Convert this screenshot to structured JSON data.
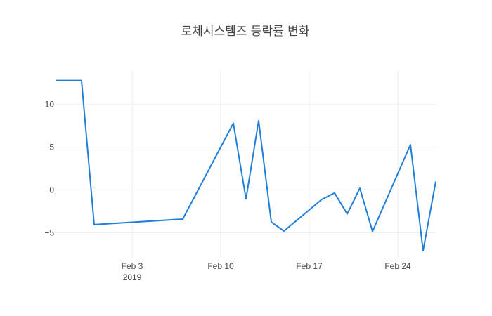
{
  "chart_data": {
    "type": "line",
    "title": "로체시스템즈 등락률 변화",
    "xlabel": "",
    "ylabel": "",
    "x": [
      "2019-01-28",
      "2019-01-30",
      "2019-01-31",
      "2019-02-07",
      "2019-02-11",
      "2019-02-12",
      "2019-02-13",
      "2019-02-14",
      "2019-02-15",
      "2019-02-18",
      "2019-02-19",
      "2019-02-20",
      "2019-02-21",
      "2019-02-22",
      "2019-02-25",
      "2019-02-26",
      "2019-02-27"
    ],
    "values": [
      12.8,
      12.8,
      -4.05,
      -3.4,
      7.8,
      -1.05,
      8.1,
      -3.75,
      -4.8,
      -1.1,
      -0.35,
      -2.8,
      0.2,
      -4.85,
      5.3,
      -7.1,
      1.0
    ],
    "x_range": [
      "2019-01-28",
      "2019-02-27"
    ],
    "ylim": [
      -8.0,
      14.0
    ],
    "y_ticks": [
      10,
      5,
      0,
      -5
    ],
    "y_tick_labels": [
      "10",
      "5",
      "0",
      "−5"
    ],
    "x_ticks": [
      "2019-02-03",
      "2019-02-10",
      "2019-02-17",
      "2019-02-24"
    ],
    "x_tick_labels": [
      "Feb 3",
      "Feb 10",
      "Feb 17",
      "Feb 24"
    ],
    "x_tick_sublabel": "2019",
    "grid": true,
    "legend": "none",
    "line_color": "#1f7fd8",
    "zero_line_color": "#444444",
    "grid_color": "#eeeeee"
  }
}
